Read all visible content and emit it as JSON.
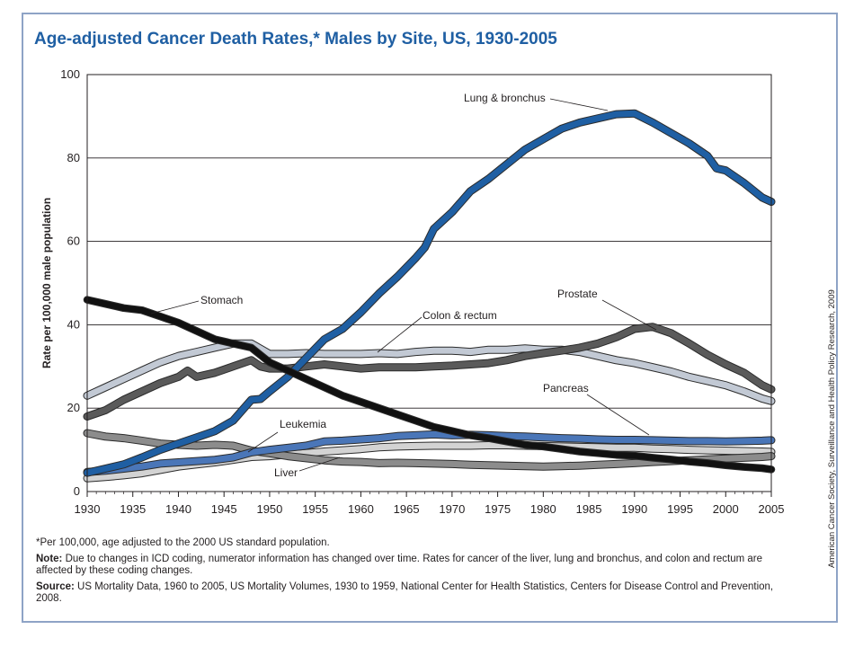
{
  "title": "Age-adjusted Cancer Death Rates,* Males by Site, US, 1930-2005",
  "credit": "American Cancer Society, Surveillance and Health Policy Research, 2009",
  "footnotes": {
    "asterisk": "*Per 100,000, age adjusted to the 2000 US standard population.",
    "note_label": "Note:",
    "note_text": " Due to changes in ICD coding, numerator information has changed over time. Rates for cancer of the liver, lung and bronchus, and colon and rectum are affected by these coding changes.",
    "source_label": "Source:",
    "source_text": " US Mortality Data, 1960 to 2005, US Mortality Volumes, 1930 to 1959, National Center for Health Statistics, Centers for Disease Control and Prevention, 2008."
  },
  "chart_data": {
    "type": "line",
    "title": "Age-adjusted Cancer Death Rates,* Males by Site, US, 1930-2005",
    "xlabel": "",
    "ylabel": "Rate per 100,000 male population",
    "xlim": [
      1930,
      2005
    ],
    "ylim": [
      0,
      100
    ],
    "x_ticks": [
      1930,
      1935,
      1940,
      1945,
      1950,
      1955,
      1960,
      1965,
      1970,
      1975,
      1980,
      1985,
      1990,
      1995,
      2000,
      2005
    ],
    "y_ticks": [
      0,
      20,
      40,
      60,
      80,
      100
    ],
    "grid": "horizontal",
    "series": [
      {
        "name": "Lung & bronchus",
        "color": "#1f5fa3",
        "points": [
          [
            1930,
            4.5
          ],
          [
            1932,
            5.5
          ],
          [
            1934,
            6.5
          ],
          [
            1936,
            8.2
          ],
          [
            1938,
            10
          ],
          [
            1940,
            11.5
          ],
          [
            1942,
            13
          ],
          [
            1944,
            14.5
          ],
          [
            1946,
            17
          ],
          [
            1948,
            22
          ],
          [
            1949,
            22.2
          ],
          [
            1950,
            24
          ],
          [
            1952,
            27.5
          ],
          [
            1954,
            32
          ],
          [
            1956,
            36.5
          ],
          [
            1958,
            39
          ],
          [
            1960,
            43
          ],
          [
            1962,
            47.5
          ],
          [
            1964,
            51.5
          ],
          [
            1966,
            56
          ],
          [
            1967,
            58.5
          ],
          [
            1968,
            63
          ],
          [
            1970,
            67
          ],
          [
            1972,
            72
          ],
          [
            1974,
            75
          ],
          [
            1976,
            78.5
          ],
          [
            1978,
            82
          ],
          [
            1980,
            84.5
          ],
          [
            1982,
            87
          ],
          [
            1984,
            88.5
          ],
          [
            1986,
            89.5
          ],
          [
            1988,
            90.5
          ],
          [
            1990,
            90.7
          ],
          [
            1992,
            88.5
          ],
          [
            1994,
            86
          ],
          [
            1996,
            83.5
          ],
          [
            1998,
            80.5
          ],
          [
            1999,
            77.5
          ],
          [
            2000,
            77
          ],
          [
            2002,
            74
          ],
          [
            2004,
            70.5
          ],
          [
            2005,
            69.5
          ]
        ]
      },
      {
        "name": "Stomach",
        "color": "#111111",
        "points": [
          [
            1930,
            46
          ],
          [
            1932,
            45
          ],
          [
            1934,
            44
          ],
          [
            1936,
            43.5
          ],
          [
            1938,
            42
          ],
          [
            1940,
            40.5
          ],
          [
            1942,
            38.5
          ],
          [
            1944,
            36.5
          ],
          [
            1946,
            35.5
          ],
          [
            1948,
            34.5
          ],
          [
            1950,
            31
          ],
          [
            1952,
            29
          ],
          [
            1954,
            27
          ],
          [
            1956,
            25
          ],
          [
            1958,
            23
          ],
          [
            1960,
            21.5
          ],
          [
            1962,
            20
          ],
          [
            1964,
            18.5
          ],
          [
            1966,
            17
          ],
          [
            1968,
            15.5
          ],
          [
            1970,
            14.5
          ],
          [
            1972,
            13.5
          ],
          [
            1974,
            12.8
          ],
          [
            1976,
            12
          ],
          [
            1978,
            11.2
          ],
          [
            1980,
            10.8
          ],
          [
            1982,
            10.2
          ],
          [
            1984,
            9.6
          ],
          [
            1986,
            9.2
          ],
          [
            1988,
            8.8
          ],
          [
            1990,
            8.6
          ],
          [
            1992,
            8.1
          ],
          [
            1994,
            7.7
          ],
          [
            1996,
            7.2
          ],
          [
            1998,
            6.8
          ],
          [
            2000,
            6.3
          ],
          [
            2002,
            5.9
          ],
          [
            2004,
            5.6
          ],
          [
            2005,
            5.3
          ]
        ]
      },
      {
        "name": "Colon & rectum",
        "color": "#c2c9d4",
        "points": [
          [
            1930,
            23
          ],
          [
            1932,
            25
          ],
          [
            1934,
            27
          ],
          [
            1936,
            29
          ],
          [
            1938,
            31
          ],
          [
            1940,
            32.5
          ],
          [
            1942,
            33.5
          ],
          [
            1944,
            34.5
          ],
          [
            1946,
            35.5
          ],
          [
            1948,
            35.5
          ],
          [
            1950,
            33
          ],
          [
            1952,
            33
          ],
          [
            1954,
            33.2
          ],
          [
            1956,
            33
          ],
          [
            1958,
            33
          ],
          [
            1960,
            33
          ],
          [
            1962,
            33.2
          ],
          [
            1964,
            33
          ],
          [
            1966,
            33.5
          ],
          [
            1968,
            33.8
          ],
          [
            1970,
            33.8
          ],
          [
            1972,
            33.5
          ],
          [
            1974,
            34
          ],
          [
            1976,
            34
          ],
          [
            1978,
            34.3
          ],
          [
            1980,
            34
          ],
          [
            1982,
            34
          ],
          [
            1984,
            33.5
          ],
          [
            1986,
            32.5
          ],
          [
            1988,
            31.5
          ],
          [
            1990,
            30.8
          ],
          [
            1992,
            29.8
          ],
          [
            1994,
            28.8
          ],
          [
            1996,
            27.5
          ],
          [
            1998,
            26.5
          ],
          [
            2000,
            25.5
          ],
          [
            2002,
            24
          ],
          [
            2004,
            22.3
          ],
          [
            2005,
            21.7
          ]
        ]
      },
      {
        "name": "Prostate",
        "color": "#5a5a5a",
        "points": [
          [
            1930,
            18
          ],
          [
            1932,
            19.5
          ],
          [
            1934,
            22
          ],
          [
            1936,
            24
          ],
          [
            1938,
            26
          ],
          [
            1940,
            27.5
          ],
          [
            1941,
            29
          ],
          [
            1942,
            27.5
          ],
          [
            1944,
            28.5
          ],
          [
            1946,
            30
          ],
          [
            1948,
            31.5
          ],
          [
            1949,
            30
          ],
          [
            1950,
            29.5
          ],
          [
            1952,
            29.5
          ],
          [
            1954,
            30
          ],
          [
            1956,
            30.5
          ],
          [
            1958,
            30
          ],
          [
            1960,
            29.5
          ],
          [
            1962,
            29.8
          ],
          [
            1964,
            29.8
          ],
          [
            1966,
            29.8
          ],
          [
            1968,
            30
          ],
          [
            1970,
            30.2
          ],
          [
            1972,
            30.5
          ],
          [
            1974,
            30.8
          ],
          [
            1976,
            31.5
          ],
          [
            1978,
            32.5
          ],
          [
            1980,
            33.2
          ],
          [
            1982,
            33.8
          ],
          [
            1984,
            34.5
          ],
          [
            1986,
            35.5
          ],
          [
            1988,
            37
          ],
          [
            1990,
            39
          ],
          [
            1992,
            39.5
          ],
          [
            1994,
            38
          ],
          [
            1996,
            35.5
          ],
          [
            1998,
            32.8
          ],
          [
            2000,
            30.5
          ],
          [
            2002,
            28.5
          ],
          [
            2004,
            25.5
          ],
          [
            2005,
            24.5
          ]
        ]
      },
      {
        "name": "Pancreas",
        "color": "#4a76b8",
        "points": [
          [
            1930,
            4.7
          ],
          [
            1932,
            5
          ],
          [
            1934,
            5.5
          ],
          [
            1936,
            6
          ],
          [
            1938,
            6.7
          ],
          [
            1940,
            7
          ],
          [
            1942,
            7.3
          ],
          [
            1944,
            7.6
          ],
          [
            1946,
            8.2
          ],
          [
            1948,
            9.4
          ],
          [
            1950,
            10
          ],
          [
            1952,
            10.5
          ],
          [
            1954,
            11
          ],
          [
            1956,
            12
          ],
          [
            1958,
            12.2
          ],
          [
            1960,
            12.5
          ],
          [
            1962,
            12.8
          ],
          [
            1964,
            13.3
          ],
          [
            1966,
            13.5
          ],
          [
            1968,
            13.7
          ],
          [
            1970,
            13.5
          ],
          [
            1972,
            13.6
          ],
          [
            1974,
            13.5
          ],
          [
            1976,
            13.3
          ],
          [
            1978,
            13.2
          ],
          [
            1980,
            13
          ],
          [
            1982,
            12.8
          ],
          [
            1984,
            12.7
          ],
          [
            1986,
            12.5
          ],
          [
            1988,
            12.4
          ],
          [
            1990,
            12.4
          ],
          [
            1992,
            12.3
          ],
          [
            1994,
            12.2
          ],
          [
            1996,
            12.1
          ],
          [
            1998,
            12.1
          ],
          [
            2000,
            12
          ],
          [
            2002,
            12.1
          ],
          [
            2004,
            12.2
          ],
          [
            2005,
            12.3
          ]
        ]
      },
      {
        "name": "Leukemia",
        "color": "#d3d3d3",
        "points": [
          [
            1930,
            3.2
          ],
          [
            1932,
            3.5
          ],
          [
            1934,
            3.9
          ],
          [
            1936,
            4.4
          ],
          [
            1938,
            5.2
          ],
          [
            1940,
            6
          ],
          [
            1942,
            6.5
          ],
          [
            1944,
            7
          ],
          [
            1946,
            7.6
          ],
          [
            1948,
            8.3
          ],
          [
            1950,
            8.5
          ],
          [
            1952,
            8.9
          ],
          [
            1954,
            9.2
          ],
          [
            1956,
            9.6
          ],
          [
            1958,
            9.9
          ],
          [
            1960,
            10.2
          ],
          [
            1962,
            10.6
          ],
          [
            1964,
            10.8
          ],
          [
            1966,
            10.9
          ],
          [
            1968,
            11
          ],
          [
            1970,
            11
          ],
          [
            1972,
            11
          ],
          [
            1974,
            11.1
          ],
          [
            1976,
            11.1
          ],
          [
            1978,
            11
          ],
          [
            1980,
            10.9
          ],
          [
            1982,
            10.8
          ],
          [
            1984,
            10.7
          ],
          [
            1986,
            10.6
          ],
          [
            1988,
            10.5
          ],
          [
            1990,
            10.5
          ],
          [
            1992,
            10.3
          ],
          [
            1994,
            10.2
          ],
          [
            1996,
            10
          ],
          [
            1998,
            9.9
          ],
          [
            2000,
            9.8
          ],
          [
            2002,
            9.7
          ],
          [
            2004,
            9.6
          ],
          [
            2005,
            9.5
          ]
        ]
      },
      {
        "name": "Liver",
        "color": "#8c8c8c",
        "points": [
          [
            1930,
            14
          ],
          [
            1932,
            13.2
          ],
          [
            1934,
            12.8
          ],
          [
            1936,
            12.2
          ],
          [
            1938,
            11.5
          ],
          [
            1940,
            11.2
          ],
          [
            1942,
            11
          ],
          [
            1944,
            11.2
          ],
          [
            1946,
            11
          ],
          [
            1948,
            9.8
          ],
          [
            1950,
            9.2
          ],
          [
            1952,
            8.5
          ],
          [
            1954,
            8
          ],
          [
            1956,
            7.5
          ],
          [
            1958,
            7.2
          ],
          [
            1960,
            7.1
          ],
          [
            1962,
            6.8
          ],
          [
            1964,
            6.9
          ],
          [
            1966,
            6.8
          ],
          [
            1968,
            6.7
          ],
          [
            1970,
            6.6
          ],
          [
            1972,
            6.4
          ],
          [
            1974,
            6.3
          ],
          [
            1976,
            6.2
          ],
          [
            1978,
            6.1
          ],
          [
            1980,
            6
          ],
          [
            1982,
            6.1
          ],
          [
            1984,
            6.2
          ],
          [
            1986,
            6.4
          ],
          [
            1988,
            6.6
          ],
          [
            1990,
            6.8
          ],
          [
            1992,
            7.1
          ],
          [
            1994,
            7.3
          ],
          [
            1996,
            7.5
          ],
          [
            1998,
            7.7
          ],
          [
            2000,
            7.9
          ],
          [
            2002,
            8.1
          ],
          [
            2004,
            8.3
          ],
          [
            2005,
            8.5
          ]
        ]
      }
    ],
    "annotations": [
      {
        "text": "Lung & bronchus",
        "series": "Lung & bronchus"
      },
      {
        "text": "Stomach",
        "series": "Stomach"
      },
      {
        "text": "Colon & rectum",
        "series": "Colon & rectum"
      },
      {
        "text": "Prostate",
        "series": "Prostate"
      },
      {
        "text": "Pancreas",
        "series": "Pancreas"
      },
      {
        "text": "Leukemia",
        "series": "Leukemia"
      },
      {
        "text": "Liver",
        "series": "Liver"
      }
    ]
  }
}
